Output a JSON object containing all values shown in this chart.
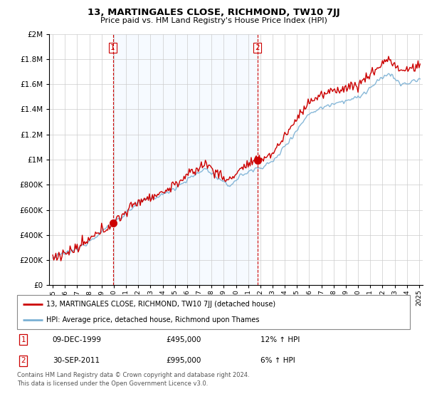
{
  "title": "13, MARTINGALES CLOSE, RICHMOND, TW10 7JJ",
  "subtitle": "Price paid vs. HM Land Registry's House Price Index (HPI)",
  "legend_line1": "13, MARTINGALES CLOSE, RICHMOND, TW10 7JJ (detached house)",
  "legend_line2": "HPI: Average price, detached house, Richmond upon Thames",
  "sale1_date": "09-DEC-1999",
  "sale1_price": "£495,000",
  "sale1_hpi": "12% ↑ HPI",
  "sale2_date": "30-SEP-2011",
  "sale2_price": "£995,000",
  "sale2_hpi": "6% ↑ HPI",
  "footer": "Contains HM Land Registry data © Crown copyright and database right 2024.\nThis data is licensed under the Open Government Licence v3.0.",
  "sale1_x": 1999.92,
  "sale1_y": 495000,
  "sale2_x": 2011.75,
  "sale2_y": 995000,
  "red_color": "#cc0000",
  "blue_color": "#7ab0d4",
  "shade_color": "#ddeeff",
  "background_color": "#ffffff",
  "grid_color": "#cccccc",
  "ylim": [
    0,
    2000000
  ],
  "xlim_start": 1994.7,
  "xlim_end": 2025.3
}
